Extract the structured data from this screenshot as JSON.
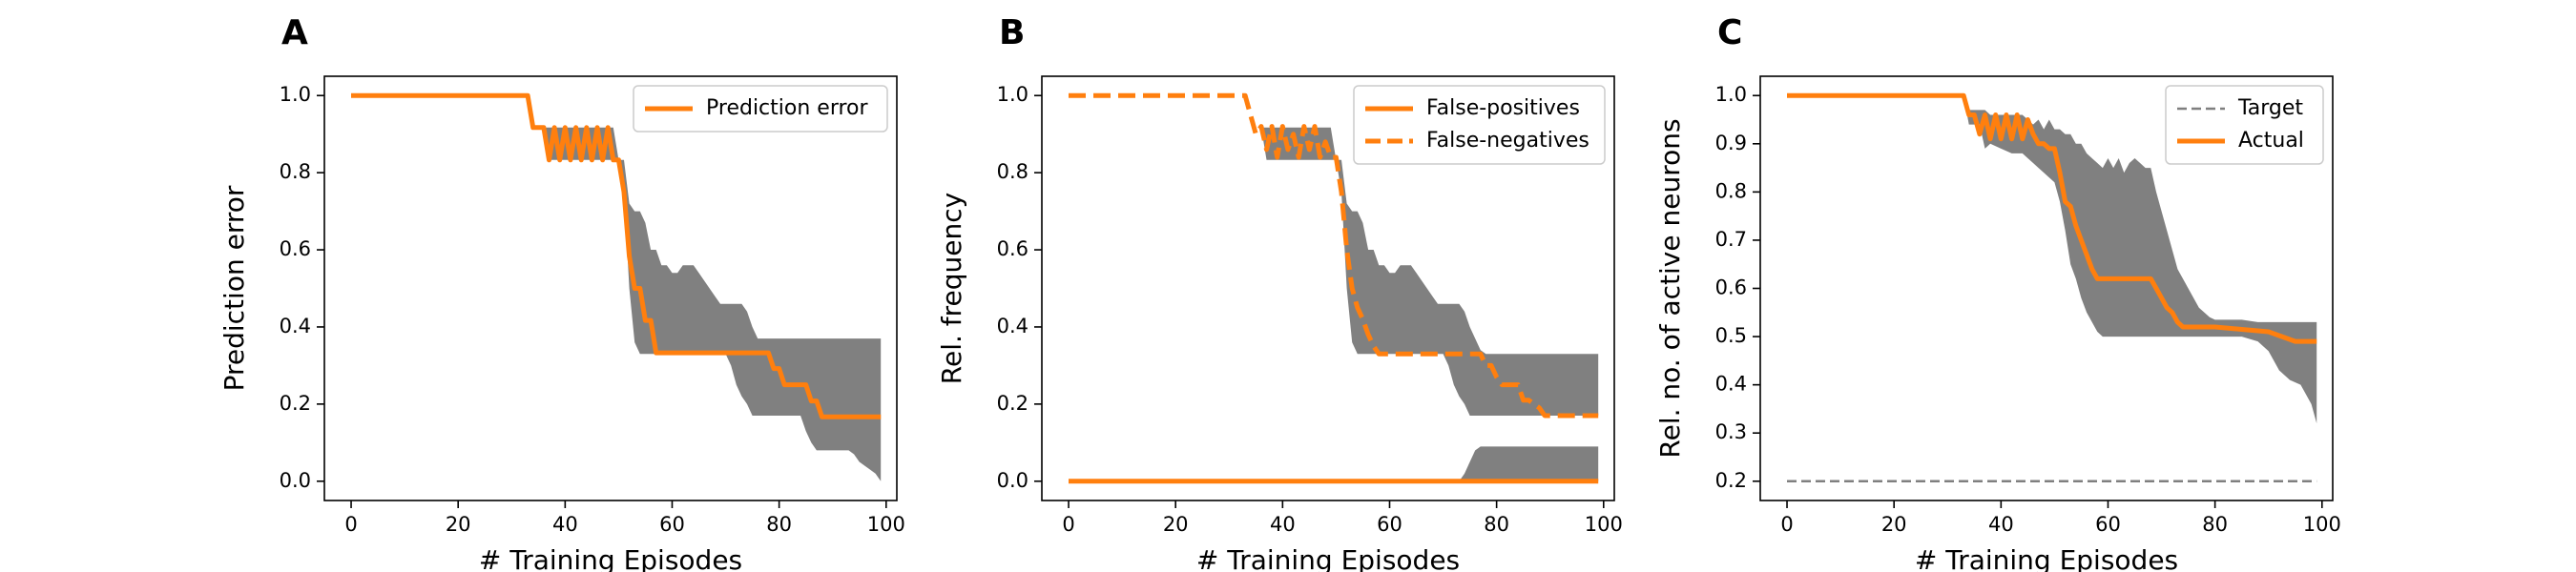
{
  "colors": {
    "orange": "#ff7f0e",
    "band": "#808080",
    "target": "#7f7f7f"
  },
  "chart_data": [
    {
      "panel_letter": "A",
      "type": "line",
      "xlabel": "# Training Episodes",
      "ylabel": "Prediction error",
      "xlim": [
        -5,
        102
      ],
      "ylim": [
        -0.05,
        1.05
      ],
      "xticks": [
        0,
        20,
        40,
        60,
        80,
        100
      ],
      "yticks": [
        0.0,
        0.2,
        0.4,
        0.6,
        0.8,
        1.0
      ],
      "ytick_format": 1,
      "legend_position": "top-right",
      "series": [
        {
          "name": "Prediction error",
          "style": "solid",
          "color": "#ff7f0e",
          "x": [
            0,
            33,
            34,
            36,
            37,
            38,
            39,
            40,
            41,
            42,
            43,
            44,
            45,
            46,
            47,
            48,
            49,
            50,
            51,
            52,
            53,
            54,
            55,
            56,
            57,
            58,
            59,
            60,
            62,
            65,
            70,
            75,
            77,
            78,
            79,
            80,
            81,
            82,
            83,
            84,
            85,
            86,
            87,
            88,
            89,
            90,
            92,
            95,
            99
          ],
          "y": [
            1.0,
            1.0,
            0.917,
            0.917,
            0.833,
            0.917,
            0.833,
            0.917,
            0.833,
            0.917,
            0.833,
            0.917,
            0.833,
            0.917,
            0.833,
            0.917,
            0.833,
            0.833,
            0.75,
            0.583,
            0.5,
            0.5,
            0.417,
            0.417,
            0.333,
            0.333,
            0.333,
            0.333,
            0.333,
            0.333,
            0.333,
            0.333,
            0.333,
            0.333,
            0.292,
            0.292,
            0.25,
            0.25,
            0.25,
            0.25,
            0.25,
            0.208,
            0.208,
            0.167,
            0.167,
            0.167,
            0.167,
            0.167,
            0.167
          ]
        }
      ],
      "bands": [
        {
          "x": [
            33,
            34,
            36,
            37,
            38,
            39,
            40,
            41,
            42,
            43,
            44,
            45,
            46,
            47,
            48,
            49,
            50,
            51,
            52,
            53,
            54,
            55,
            56,
            57,
            58,
            59,
            60,
            61,
            62,
            63,
            64,
            65,
            66,
            67,
            68,
            69,
            70,
            71,
            72,
            73,
            74,
            75,
            76,
            77,
            78,
            79,
            80,
            81,
            82,
            83,
            84,
            85,
            86,
            87,
            88,
            89,
            90,
            91,
            92,
            93,
            94,
            95,
            96,
            97,
            98,
            99
          ],
          "upper": [
            1.0,
            0.917,
            0.917,
            0.917,
            0.917,
            0.917,
            0.917,
            0.917,
            0.917,
            0.917,
            0.917,
            0.917,
            0.917,
            0.917,
            0.917,
            0.917,
            0.833,
            0.833,
            0.72,
            0.7,
            0.7,
            0.67,
            0.6,
            0.6,
            0.56,
            0.56,
            0.54,
            0.54,
            0.56,
            0.56,
            0.56,
            0.54,
            0.52,
            0.5,
            0.48,
            0.46,
            0.46,
            0.46,
            0.46,
            0.46,
            0.44,
            0.4,
            0.37,
            0.37,
            0.37,
            0.37,
            0.37,
            0.37,
            0.37,
            0.37,
            0.37,
            0.37,
            0.37,
            0.37,
            0.37,
            0.37,
            0.37,
            0.37,
            0.37,
            0.37,
            0.37,
            0.37,
            0.37,
            0.37,
            0.37,
            0.37
          ],
          "lower": [
            1.0,
            0.917,
            0.917,
            0.833,
            0.833,
            0.833,
            0.833,
            0.833,
            0.833,
            0.833,
            0.833,
            0.833,
            0.833,
            0.833,
            0.833,
            0.833,
            0.833,
            0.75,
            0.5,
            0.36,
            0.33,
            0.33,
            0.33,
            0.33,
            0.33,
            0.33,
            0.33,
            0.33,
            0.33,
            0.33,
            0.33,
            0.33,
            0.33,
            0.33,
            0.33,
            0.33,
            0.33,
            0.3,
            0.25,
            0.22,
            0.2,
            0.17,
            0.17,
            0.17,
            0.17,
            0.17,
            0.17,
            0.17,
            0.17,
            0.17,
            0.17,
            0.13,
            0.1,
            0.08,
            0.08,
            0.08,
            0.08,
            0.08,
            0.08,
            0.08,
            0.07,
            0.05,
            0.04,
            0.03,
            0.02,
            0.0
          ]
        }
      ],
      "hlines": []
    },
    {
      "panel_letter": "B",
      "type": "line",
      "xlabel": "# Training Episodes",
      "ylabel": "Rel. frequency",
      "xlim": [
        -5,
        102
      ],
      "ylim": [
        -0.05,
        1.05
      ],
      "xticks": [
        0,
        20,
        40,
        60,
        80,
        100
      ],
      "yticks": [
        0.0,
        0.2,
        0.4,
        0.6,
        0.8,
        1.0
      ],
      "ytick_format": 1,
      "legend_position": "top-right",
      "series": [
        {
          "name": "False-positives",
          "style": "solid",
          "color": "#ff7f0e",
          "x": [
            0,
            99
          ],
          "y": [
            0.0,
            0.0
          ]
        },
        {
          "name": "False-negatives",
          "style": "dashed",
          "color": "#ff7f0e",
          "x": [
            0,
            33,
            34,
            35,
            36,
            37,
            38,
            39,
            40,
            41,
            42,
            43,
            44,
            45,
            46,
            47,
            48,
            49,
            50,
            51,
            52,
            53,
            54,
            55,
            56,
            57,
            58,
            60,
            65,
            70,
            75,
            77,
            78,
            79,
            80,
            81,
            82,
            83,
            84,
            85,
            86,
            87,
            88,
            89,
            90,
            95,
            99
          ],
          "y": [
            1.0,
            1.0,
            0.95,
            0.9,
            0.92,
            0.86,
            0.92,
            0.84,
            0.92,
            0.86,
            0.9,
            0.84,
            0.92,
            0.86,
            0.92,
            0.84,
            0.88,
            0.84,
            0.84,
            0.75,
            0.6,
            0.5,
            0.45,
            0.42,
            0.38,
            0.35,
            0.33,
            0.33,
            0.33,
            0.33,
            0.33,
            0.33,
            0.3,
            0.3,
            0.27,
            0.25,
            0.25,
            0.25,
            0.25,
            0.21,
            0.21,
            0.2,
            0.19,
            0.17,
            0.17,
            0.17,
            0.17
          ]
        }
      ],
      "bands": [
        {
          "x": [
            33,
            34,
            36,
            37,
            38,
            39,
            40,
            41,
            42,
            43,
            44,
            45,
            46,
            47,
            48,
            49,
            50,
            51,
            52,
            53,
            54,
            55,
            56,
            57,
            58,
            59,
            60,
            61,
            62,
            63,
            64,
            65,
            66,
            67,
            68,
            69,
            70,
            71,
            72,
            73,
            74,
            75,
            76,
            77,
            78,
            79,
            80,
            81,
            82,
            83,
            84,
            85,
            86,
            87,
            88,
            89,
            90,
            91,
            92,
            93,
            94,
            95,
            96,
            97,
            98,
            99
          ],
          "upper": [
            1.0,
            0.917,
            0.917,
            0.917,
            0.917,
            0.917,
            0.917,
            0.917,
            0.917,
            0.917,
            0.917,
            0.917,
            0.917,
            0.917,
            0.917,
            0.917,
            0.833,
            0.833,
            0.72,
            0.7,
            0.7,
            0.67,
            0.6,
            0.6,
            0.56,
            0.56,
            0.54,
            0.54,
            0.56,
            0.56,
            0.56,
            0.54,
            0.52,
            0.5,
            0.48,
            0.46,
            0.46,
            0.46,
            0.46,
            0.46,
            0.44,
            0.4,
            0.37,
            0.34,
            0.33,
            0.33,
            0.33,
            0.33,
            0.33,
            0.33,
            0.33,
            0.33,
            0.33,
            0.33,
            0.33,
            0.33,
            0.33,
            0.33,
            0.33,
            0.33,
            0.33,
            0.33,
            0.33,
            0.33,
            0.33,
            0.33
          ],
          "lower": [
            1.0,
            0.917,
            0.917,
            0.833,
            0.833,
            0.833,
            0.833,
            0.833,
            0.833,
            0.833,
            0.833,
            0.833,
            0.833,
            0.833,
            0.833,
            0.833,
            0.833,
            0.75,
            0.5,
            0.36,
            0.33,
            0.33,
            0.33,
            0.33,
            0.33,
            0.33,
            0.33,
            0.33,
            0.33,
            0.33,
            0.33,
            0.33,
            0.33,
            0.33,
            0.33,
            0.33,
            0.33,
            0.3,
            0.25,
            0.22,
            0.2,
            0.17,
            0.17,
            0.17,
            0.17,
            0.17,
            0.17,
            0.17,
            0.17,
            0.17,
            0.17,
            0.17,
            0.17,
            0.17,
            0.17,
            0.17,
            0.17,
            0.17,
            0.17,
            0.17,
            0.17,
            0.17,
            0.17,
            0.17,
            0.17,
            0.17
          ]
        },
        {
          "x": [
            73,
            74,
            75,
            76,
            77,
            78,
            79,
            80,
            85,
            90,
            95,
            99
          ],
          "upper": [
            0.0,
            0.02,
            0.05,
            0.08,
            0.09,
            0.09,
            0.09,
            0.09,
            0.09,
            0.09,
            0.09,
            0.09
          ],
          "lower": [
            0.0,
            0.0,
            0.0,
            0.0,
            0.0,
            0.0,
            0.0,
            0.0,
            0.0,
            0.0,
            0.0,
            0.0
          ]
        }
      ],
      "hlines": []
    },
    {
      "panel_letter": "C",
      "type": "line",
      "xlabel": "# Training Episodes",
      "ylabel": "Rel. no. of active neurons",
      "xlim": [
        -5,
        102
      ],
      "ylim": [
        0.16,
        1.04
      ],
      "xticks": [
        0,
        20,
        40,
        60,
        80,
        100
      ],
      "yticks": [
        0.2,
        0.3,
        0.4,
        0.5,
        0.6,
        0.7,
        0.8,
        0.9,
        1.0
      ],
      "ytick_format": 1,
      "legend_position": "top-right",
      "series": [
        {
          "name": "Target",
          "style": "target",
          "color": "#7f7f7f",
          "x": [
            0,
            99
          ],
          "y": [
            0.2,
            0.2
          ]
        },
        {
          "name": "Actual",
          "style": "solid",
          "color": "#ff7f0e",
          "x": [
            0,
            33,
            34,
            35,
            36,
            37,
            38,
            39,
            40,
            41,
            42,
            43,
            44,
            45,
            46,
            47,
            48,
            49,
            50,
            51,
            52,
            53,
            54,
            55,
            56,
            57,
            58,
            59,
            60,
            62,
            65,
            68,
            69,
            70,
            71,
            72,
            73,
            74,
            75,
            80,
            85,
            90,
            95,
            99
          ],
          "y": [
            1.0,
            1.0,
            0.96,
            0.96,
            0.92,
            0.96,
            0.91,
            0.96,
            0.91,
            0.96,
            0.91,
            0.96,
            0.91,
            0.95,
            0.92,
            0.9,
            0.9,
            0.89,
            0.89,
            0.84,
            0.78,
            0.77,
            0.73,
            0.7,
            0.67,
            0.64,
            0.62,
            0.62,
            0.62,
            0.62,
            0.62,
            0.62,
            0.6,
            0.58,
            0.56,
            0.55,
            0.53,
            0.52,
            0.52,
            0.52,
            0.515,
            0.51,
            0.49,
            0.49
          ]
        }
      ],
      "bands": [
        {
          "x": [
            33,
            34,
            36,
            37,
            38,
            40,
            42,
            44,
            45,
            46,
            47,
            48,
            49,
            50,
            51,
            52,
            53,
            54,
            55,
            56,
            57,
            58,
            59,
            60,
            61,
            62,
            63,
            64,
            65,
            66,
            67,
            68,
            69,
            70,
            71,
            72,
            73,
            74,
            75,
            76,
            77,
            78,
            79,
            80,
            85,
            88,
            90,
            92,
            94,
            96,
            98,
            99
          ],
          "upper": [
            1.0,
            0.97,
            0.97,
            0.97,
            0.96,
            0.96,
            0.96,
            0.96,
            0.95,
            0.94,
            0.95,
            0.93,
            0.95,
            0.93,
            0.93,
            0.92,
            0.92,
            0.9,
            0.9,
            0.88,
            0.87,
            0.86,
            0.85,
            0.87,
            0.85,
            0.87,
            0.84,
            0.86,
            0.87,
            0.86,
            0.85,
            0.85,
            0.8,
            0.76,
            0.72,
            0.68,
            0.64,
            0.62,
            0.6,
            0.58,
            0.56,
            0.55,
            0.54,
            0.535,
            0.535,
            0.53,
            0.53,
            0.53,
            0.53,
            0.53,
            0.53,
            0.53
          ],
          "lower": [
            1.0,
            0.94,
            0.94,
            0.89,
            0.9,
            0.89,
            0.88,
            0.88,
            0.87,
            0.86,
            0.85,
            0.84,
            0.83,
            0.82,
            0.78,
            0.72,
            0.65,
            0.62,
            0.58,
            0.55,
            0.53,
            0.51,
            0.5,
            0.5,
            0.5,
            0.5,
            0.5,
            0.5,
            0.5,
            0.5,
            0.5,
            0.5,
            0.5,
            0.5,
            0.5,
            0.5,
            0.5,
            0.5,
            0.5,
            0.5,
            0.5,
            0.5,
            0.5,
            0.5,
            0.5,
            0.49,
            0.47,
            0.43,
            0.41,
            0.4,
            0.36,
            0.32
          ]
        }
      ],
      "hlines": []
    }
  ]
}
